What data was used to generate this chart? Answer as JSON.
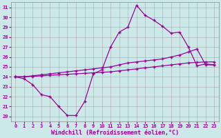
{
  "xlabel": "Windchill (Refroidissement éolien,°C)",
  "background_color": "#cce8e8",
  "line_color": "#990099",
  "grid_color": "#aaaaaa",
  "xlim": [
    -0.5,
    23.5
  ],
  "ylim": [
    19.5,
    31.5
  ],
  "xticks": [
    0,
    1,
    2,
    3,
    4,
    5,
    6,
    7,
    8,
    9,
    10,
    11,
    12,
    13,
    14,
    15,
    16,
    17,
    18,
    19,
    20,
    21,
    22,
    23
  ],
  "yticks": [
    20,
    21,
    22,
    23,
    24,
    25,
    26,
    27,
    28,
    29,
    30,
    31
  ],
  "line1_x": [
    0,
    1,
    2,
    3,
    4,
    5,
    6,
    7,
    8,
    9,
    10,
    11,
    12,
    13,
    14,
    15,
    16,
    17,
    18,
    19,
    20,
    21,
    22,
    23
  ],
  "line1_y": [
    24.0,
    23.8,
    23.2,
    22.2,
    22.0,
    21.0,
    20.1,
    20.1,
    21.5,
    24.3,
    24.7,
    27.0,
    28.5,
    29.0,
    31.2,
    30.2,
    29.7,
    29.1,
    28.4,
    28.5,
    27.0,
    25.1,
    25.3,
    25.2
  ],
  "line2_x": [
    0,
    1,
    2,
    3,
    4,
    5,
    6,
    7,
    8,
    9,
    10,
    11,
    12,
    13,
    14,
    15,
    16,
    17,
    18,
    19,
    20,
    21,
    22,
    23
  ],
  "line2_y": [
    24.0,
    24.0,
    24.1,
    24.2,
    24.3,
    24.4,
    24.5,
    24.6,
    24.7,
    24.8,
    24.9,
    25.0,
    25.2,
    25.4,
    25.5,
    25.6,
    25.7,
    25.8,
    26.0,
    26.2,
    26.5,
    26.8,
    25.2,
    25.2
  ],
  "line3_x": [
    0,
    1,
    2,
    3,
    4,
    5,
    6,
    7,
    8,
    9,
    10,
    11,
    12,
    13,
    14,
    15,
    16,
    17,
    18,
    19,
    20,
    21,
    22,
    23
  ],
  "line3_y": [
    24.0,
    24.0,
    24.05,
    24.1,
    24.15,
    24.2,
    24.25,
    24.3,
    24.35,
    24.4,
    24.45,
    24.5,
    24.6,
    24.7,
    24.8,
    24.9,
    25.0,
    25.1,
    25.2,
    25.3,
    25.4,
    25.45,
    25.5,
    25.5
  ],
  "marker": "+",
  "markersize": 3.5,
  "linewidth": 0.9,
  "tick_fontsize": 5,
  "label_fontsize": 6
}
